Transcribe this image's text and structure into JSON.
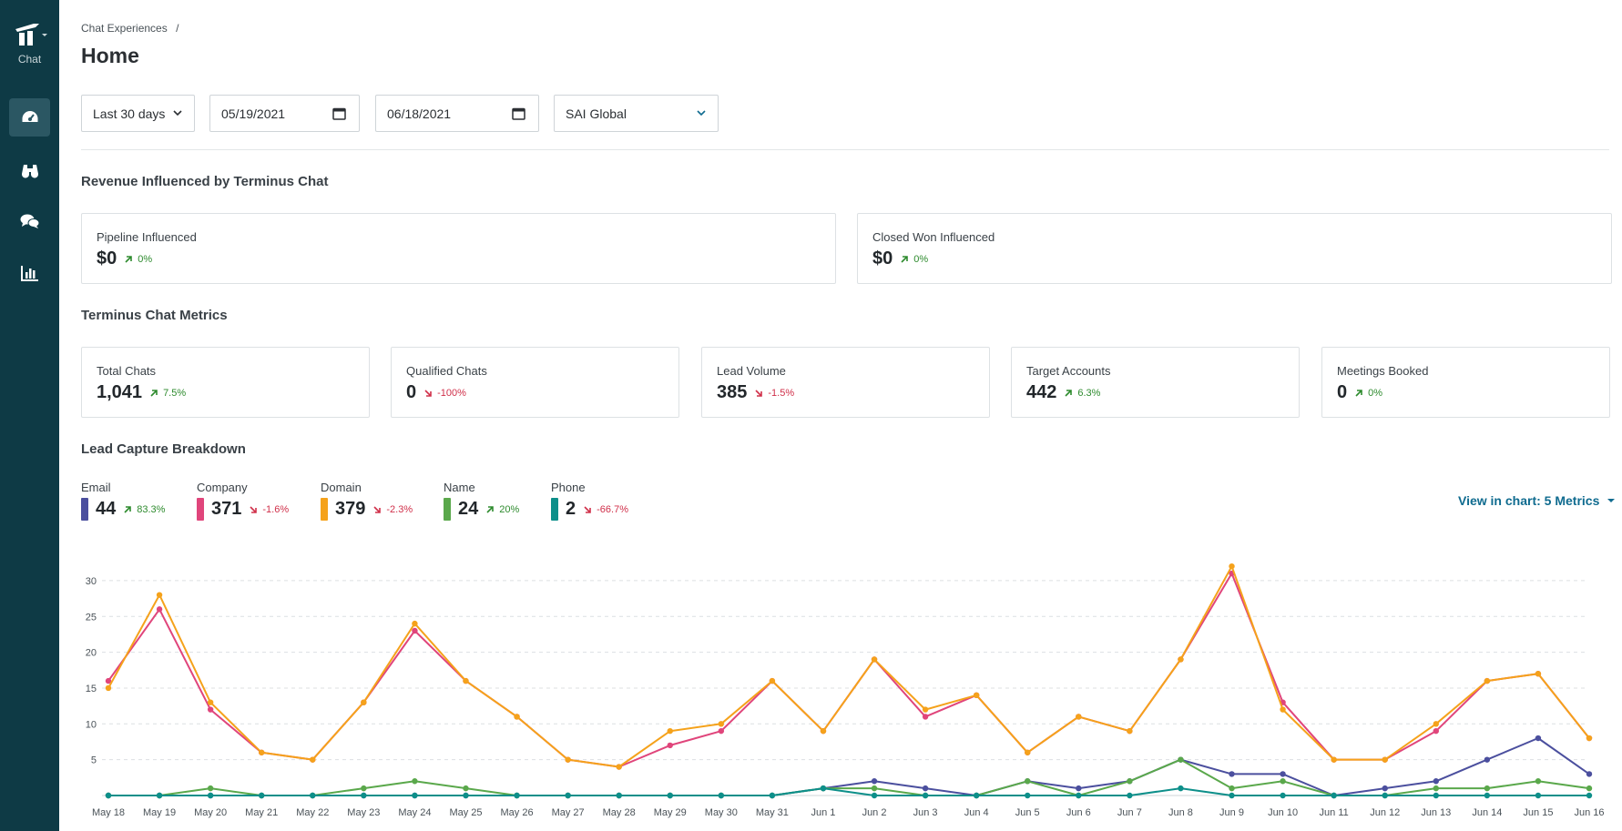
{
  "app": {
    "logo_label": "Chat"
  },
  "sidebar": {
    "items": [
      {
        "icon": "dashboard-icon",
        "active": true
      },
      {
        "icon": "binoculars-icon",
        "active": false
      },
      {
        "icon": "chat-bubbles-icon",
        "active": false
      },
      {
        "icon": "bar-chart-icon",
        "active": false
      }
    ]
  },
  "breadcrumb": {
    "parent": "Chat Experiences",
    "separator": "/"
  },
  "page_title": "Home",
  "filters": {
    "range": "Last 30 days",
    "start_date": "05/19/2021",
    "end_date": "06/18/2021",
    "account": "SAI Global"
  },
  "revenue": {
    "title": "Revenue Influenced by Terminus Chat",
    "cards": [
      {
        "label": "Pipeline Influenced",
        "value": "$0",
        "delta": "0%",
        "trend": "up"
      },
      {
        "label": "Closed Won Influenced",
        "value": "$0",
        "delta": "0%",
        "trend": "up"
      }
    ]
  },
  "metrics": {
    "title": "Terminus Chat Metrics",
    "cards": [
      {
        "label": "Total Chats",
        "value": "1,041",
        "delta": "7.5%",
        "trend": "up"
      },
      {
        "label": "Qualified Chats",
        "value": "0",
        "delta": "-100%",
        "trend": "down"
      },
      {
        "label": "Lead Volume",
        "value": "385",
        "delta": "-1.5%",
        "trend": "down"
      },
      {
        "label": "Target Accounts",
        "value": "442",
        "delta": "6.3%",
        "trend": "up"
      },
      {
        "label": "Meetings Booked",
        "value": "0",
        "delta": "0%",
        "trend": "up"
      }
    ]
  },
  "lead_capture": {
    "title": "Lead Capture Breakdown",
    "view_in_chart": "View in chart: 5 Metrics",
    "legend": [
      {
        "name": "Email",
        "value": "44",
        "delta": "83.3%",
        "trend": "up",
        "color": "#4b4f9e"
      },
      {
        "name": "Company",
        "value": "371",
        "delta": "-1.6%",
        "trend": "down",
        "color": "#e0457b"
      },
      {
        "name": "Domain",
        "value": "379",
        "delta": "-2.3%",
        "trend": "down",
        "color": "#f5a21b"
      },
      {
        "name": "Name",
        "value": "24",
        "delta": "20%",
        "trend": "up",
        "color": "#5aa84b"
      },
      {
        "name": "Phone",
        "value": "2",
        "delta": "-66.7%",
        "trend": "down",
        "color": "#0d8f8a"
      }
    ]
  },
  "chart_data": {
    "type": "line",
    "x": [
      "May 18",
      "May 19",
      "May 20",
      "May 21",
      "May 22",
      "May 23",
      "May 24",
      "May 25",
      "May 26",
      "May 27",
      "May 28",
      "May 29",
      "May 30",
      "May 31",
      "Jun 1",
      "Jun 2",
      "Jun 3",
      "Jun 4",
      "Jun 5",
      "Jun 6",
      "Jun 7",
      "Jun 8",
      "Jun 9",
      "Jun 10",
      "Jun 11",
      "Jun 12",
      "Jun 13",
      "Jun 14",
      "Jun 15",
      "Jun 16"
    ],
    "yticks": [
      5,
      10,
      15,
      20,
      25,
      30
    ],
    "ylim": [
      0,
      32
    ],
    "grid": true,
    "series": [
      {
        "name": "Email",
        "color": "#4b4f9e",
        "values": [
          0,
          0,
          0,
          0,
          0,
          0,
          0,
          0,
          0,
          0,
          0,
          0,
          0,
          0,
          1,
          2,
          1,
          0,
          2,
          1,
          2,
          5,
          3,
          3,
          0,
          1,
          2,
          5,
          8,
          3
        ]
      },
      {
        "name": "Name",
        "color": "#5aa84b",
        "values": [
          0,
          0,
          1,
          0,
          0,
          1,
          2,
          1,
          0,
          0,
          0,
          0,
          0,
          0,
          1,
          1,
          0,
          0,
          2,
          0,
          2,
          5,
          1,
          2,
          0,
          0,
          1,
          1,
          2,
          1
        ]
      },
      {
        "name": "Phone",
        "color": "#0d8f8a",
        "values": [
          0,
          0,
          0,
          0,
          0,
          0,
          0,
          0,
          0,
          0,
          0,
          0,
          0,
          0,
          1,
          0,
          0,
          0,
          0,
          0,
          0,
          1,
          0,
          0,
          0,
          0,
          0,
          0,
          0,
          0
        ]
      },
      {
        "name": "Company",
        "color": "#e0457b",
        "values": [
          16,
          26,
          12,
          6,
          5,
          13,
          23,
          16,
          11,
          5,
          4,
          7,
          9,
          16,
          9,
          19,
          11,
          14,
          6,
          11,
          9,
          19,
          31,
          13,
          5,
          5,
          9,
          16,
          17,
          8
        ]
      },
      {
        "name": "Domain",
        "color": "#f5a21b",
        "values": [
          15,
          28,
          13,
          6,
          5,
          13,
          24,
          16,
          11,
          5,
          4,
          9,
          10,
          16,
          9,
          19,
          12,
          14,
          6,
          11,
          9,
          19,
          32,
          12,
          5,
          5,
          10,
          16,
          17,
          8
        ]
      }
    ]
  }
}
